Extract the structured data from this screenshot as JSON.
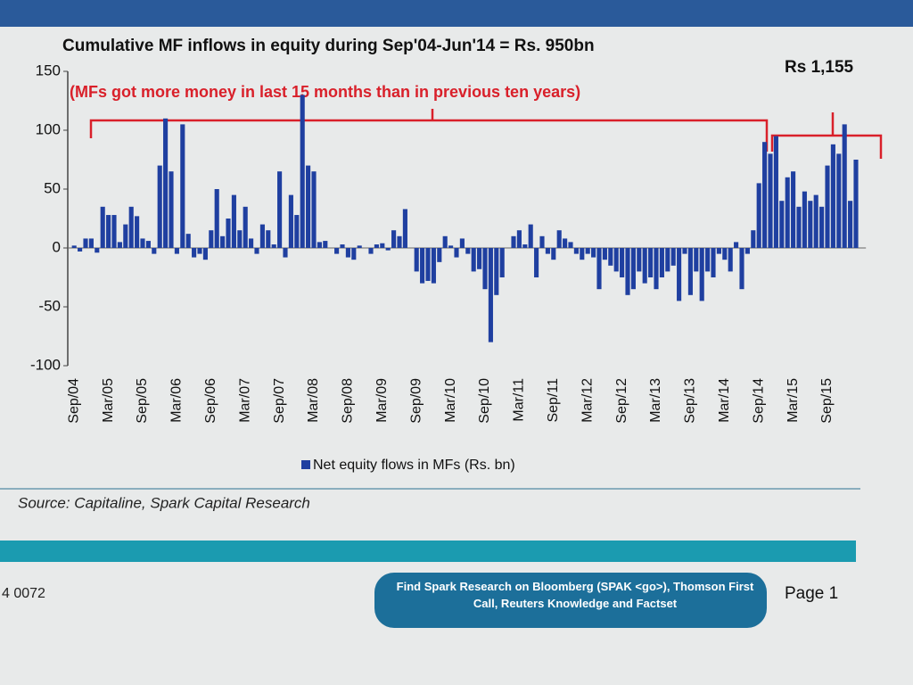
{
  "chart_data": {
    "type": "bar",
    "title": "Cumulative MF inflows in equity during Sep'04-Jun'14 = Rs. 950bn",
    "annotation": "(MFs got more money in last 15 months than in previous ten years)",
    "total_label": "Rs 1,155",
    "categories": [
      "Sep/04",
      null,
      null,
      null,
      null,
      null,
      "Mar/05",
      null,
      null,
      null,
      null,
      null,
      "Sep/05",
      null,
      null,
      null,
      null,
      null,
      "Mar/06",
      null,
      null,
      null,
      null,
      null,
      "Sep/06",
      null,
      null,
      null,
      null,
      null,
      "Mar/07",
      null,
      null,
      null,
      null,
      null,
      "Sep/07",
      null,
      null,
      null,
      null,
      null,
      "Mar/08",
      null,
      null,
      null,
      null,
      null,
      "Sep/08",
      null,
      null,
      null,
      null,
      null,
      "Mar/09",
      null,
      null,
      null,
      null,
      null,
      "Sep/09",
      null,
      null,
      null,
      null,
      null,
      "Mar/10",
      null,
      null,
      null,
      null,
      null,
      "Sep/10",
      null,
      null,
      null,
      null,
      null,
      "Mar/11",
      null,
      null,
      null,
      null,
      null,
      "Sep/11",
      null,
      null,
      null,
      null,
      null,
      "Mar/12",
      null,
      null,
      null,
      null,
      null,
      "Sep/12",
      null,
      null,
      null,
      null,
      null,
      "Mar/13",
      null,
      null,
      null,
      null,
      null,
      "Sep/13",
      null,
      null,
      null,
      null,
      null,
      "Mar/14",
      null,
      null,
      null,
      null,
      null,
      "Sep/14",
      null,
      null,
      null,
      null,
      null,
      "Mar/15",
      null,
      null,
      null,
      null,
      null,
      "Sep/15",
      null,
      null,
      null,
      null,
      null
    ],
    "series": [
      {
        "name": "Net equity flows in MFs (Rs. bn)",
        "color": "#1f3fa0",
        "values": [
          2,
          -3,
          8,
          8,
          -4,
          35,
          28,
          28,
          5,
          20,
          35,
          27,
          8,
          6,
          -5,
          70,
          110,
          65,
          -5,
          105,
          12,
          -8,
          -5,
          -10,
          15,
          50,
          10,
          25,
          45,
          15,
          35,
          8,
          -5,
          20,
          15,
          3,
          65,
          -8,
          45,
          28,
          130,
          70,
          65,
          5,
          6,
          0,
          -5,
          3,
          -8,
          -10,
          2,
          0,
          -5,
          3,
          4,
          -2,
          15,
          10,
          33,
          0,
          -20,
          -30,
          -28,
          -30,
          -12,
          10,
          2,
          -8,
          8,
          -5,
          -20,
          -18,
          -35,
          -80,
          -40,
          -25,
          0,
          10,
          15,
          3,
          20,
          -25,
          10,
          -5,
          -10,
          15,
          8,
          5,
          -5,
          -10,
          -5,
          -8,
          -35,
          -10,
          -15,
          -20,
          -25,
          -40,
          -35,
          -20,
          -30,
          -25,
          -35,
          -25,
          -20,
          -15,
          -45,
          -5,
          -40,
          -20,
          -45,
          -20,
          -25,
          -5,
          -10,
          -20,
          5,
          -35,
          -5,
          15,
          55,
          90,
          80,
          95,
          40,
          60,
          65,
          35,
          48,
          40,
          45,
          35,
          70,
          88,
          80,
          105,
          40,
          75
        ]
      }
    ],
    "ylim": [
      -100,
      150
    ],
    "yticks": [
      -100,
      -50,
      0,
      50,
      100,
      150
    ]
  },
  "source": "Source: Capitaline, Spark Capital Research",
  "footer": {
    "phone": "4 0072",
    "notice": "Find Spark Research on Bloomberg (SPAK <go>), Thomson First Call, Reuters Knowledge and Factset",
    "page": "Page 1"
  }
}
